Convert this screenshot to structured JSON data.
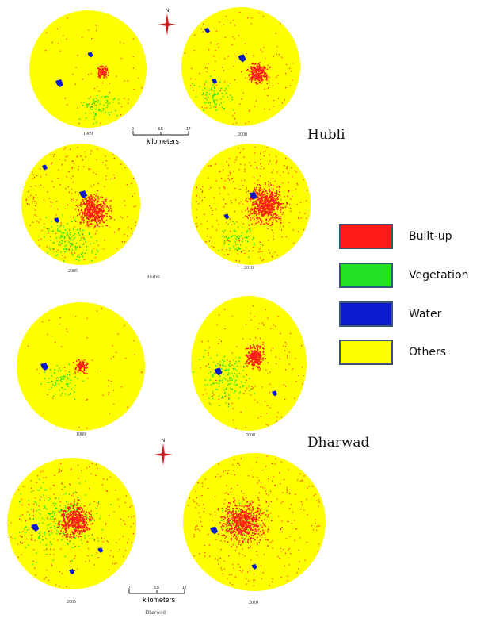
{
  "cities": {
    "hubli": "Hubli",
    "dharwad": "Dharwad"
  },
  "captions": {
    "hubli": "Hubli",
    "dharwad": "Dharwad"
  },
  "scale": {
    "unit": "kilometers",
    "ticks": [
      "0",
      "8.5",
      "17"
    ]
  },
  "legend": [
    {
      "label": "Built-up",
      "color": "#ff1a1a"
    },
    {
      "label": "Vegetation",
      "color": "#22e022"
    },
    {
      "label": "Water",
      "color": "#0b1acc"
    },
    {
      "label": "Others",
      "color": "#ffff00"
    }
  ],
  "maps": [
    {
      "id": "hubli-1989",
      "year": "1989",
      "city": "Hubli",
      "built_up": "low",
      "vegetation": "low",
      "water": "small bodies"
    },
    {
      "id": "hubli-2000",
      "year": "2000",
      "city": "Hubli",
      "built_up": "medium",
      "vegetation": "low",
      "water": "small bodies"
    },
    {
      "id": "hubli-2005",
      "year": "2005",
      "city": "Hubli",
      "built_up": "high",
      "vegetation": "medium",
      "water": "small bodies"
    },
    {
      "id": "hubli-2010",
      "year": "2010",
      "city": "Hubli",
      "built_up": "very high",
      "vegetation": "low",
      "water": "small bodies"
    },
    {
      "id": "dharwad-1989",
      "year": "1989",
      "city": "Dharwad",
      "built_up": "low",
      "vegetation": "low",
      "water": "small bodies"
    },
    {
      "id": "dharwad-2000",
      "year": "2000",
      "city": "Dharwad",
      "built_up": "medium",
      "vegetation": "medium",
      "water": "small bodies"
    },
    {
      "id": "dharwad-2005",
      "year": "2005",
      "city": "Dharwad",
      "built_up": "high",
      "vegetation": "high",
      "water": "small bodies"
    },
    {
      "id": "dharwad-2010",
      "year": "2010",
      "city": "Dharwad",
      "built_up": "very high",
      "vegetation": "low",
      "water": "small bodies"
    }
  ],
  "north_label": "N"
}
